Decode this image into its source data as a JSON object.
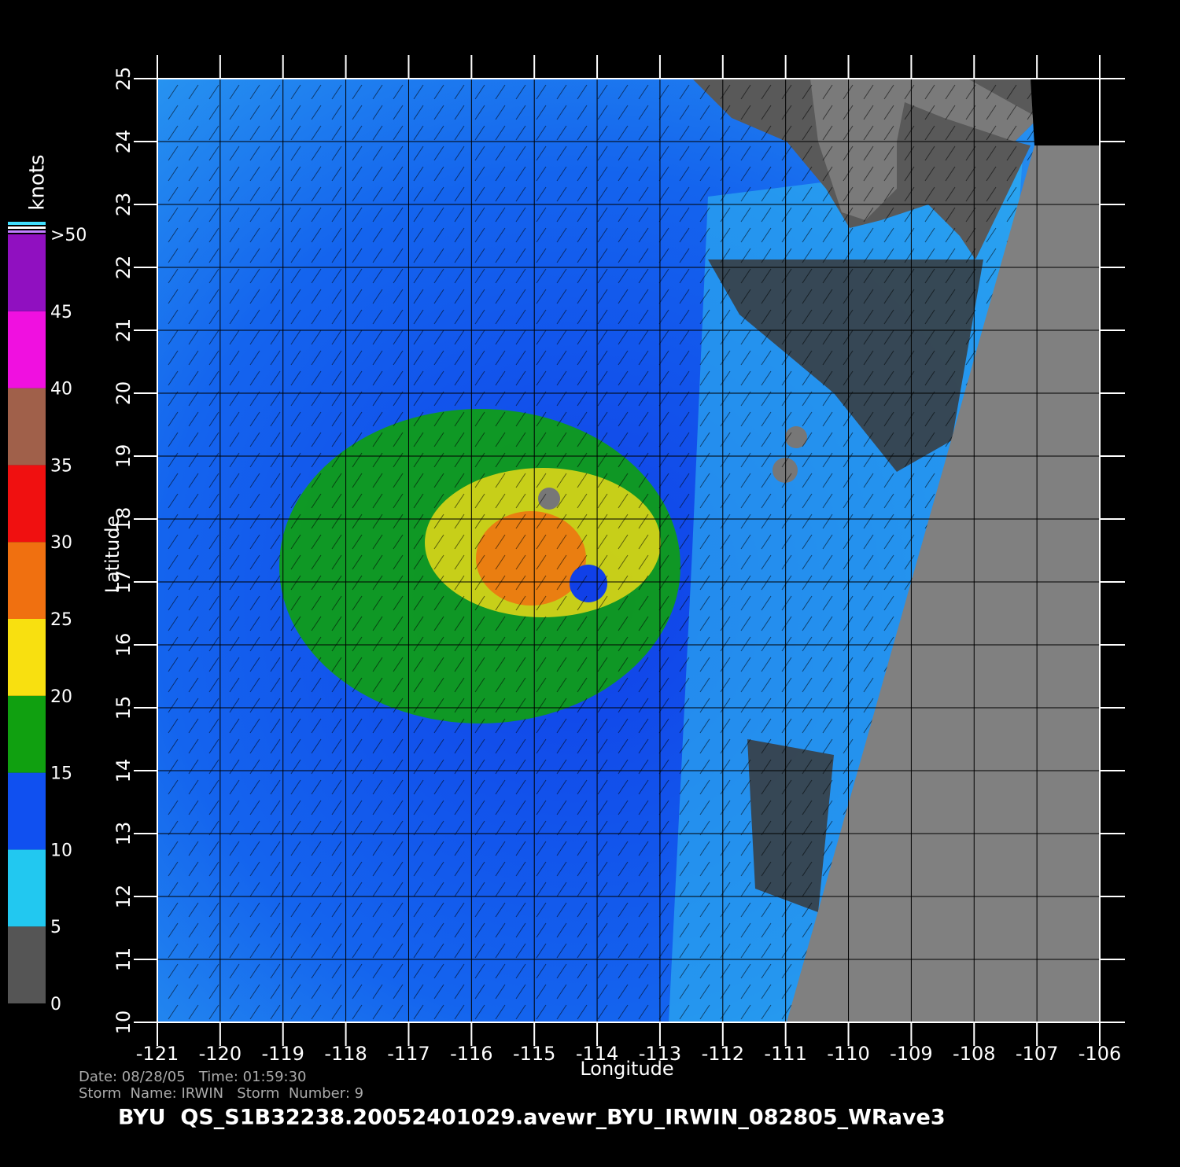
{
  "map": {
    "xaxis": {
      "label": "Longitude",
      "lim": [
        -121,
        -106
      ],
      "ticks": [
        -121,
        -120,
        -119,
        -118,
        -117,
        -116,
        -115,
        -114,
        -113,
        -112,
        -111,
        -110,
        -109,
        -108,
        -107,
        -106
      ]
    },
    "yaxis": {
      "label": "Latitude",
      "lim": [
        10,
        25
      ],
      "ticks": [
        10,
        11,
        12,
        13,
        14,
        15,
        16,
        17,
        18,
        19,
        20,
        21,
        22,
        23,
        24,
        25
      ]
    },
    "colorbar": {
      "title": "knots",
      "lim": [
        0,
        50
      ],
      "ticks": [
        0,
        5,
        10,
        15,
        20,
        25,
        30,
        35,
        40,
        45,
        {
          "value": 50,
          "label": ">50"
        }
      ],
      "colors": [
        "#555555",
        "#22c8f0",
        "#1050f0",
        "#10a010",
        "#f8e010",
        "#f07010",
        "#f01010",
        "#a0604a",
        "#f010e0",
        "#9010c0"
      ]
    },
    "footer": {
      "date_line": "Date: 08/28/05   Time: 01:59:30",
      "storm_line": "Storm  Name: IRWIN   Storm  Number: 9",
      "file": "BYU  QS_S1B32238.20052401029.avewr_BYU_IRWIN_082805_WRave3"
    }
  }
}
